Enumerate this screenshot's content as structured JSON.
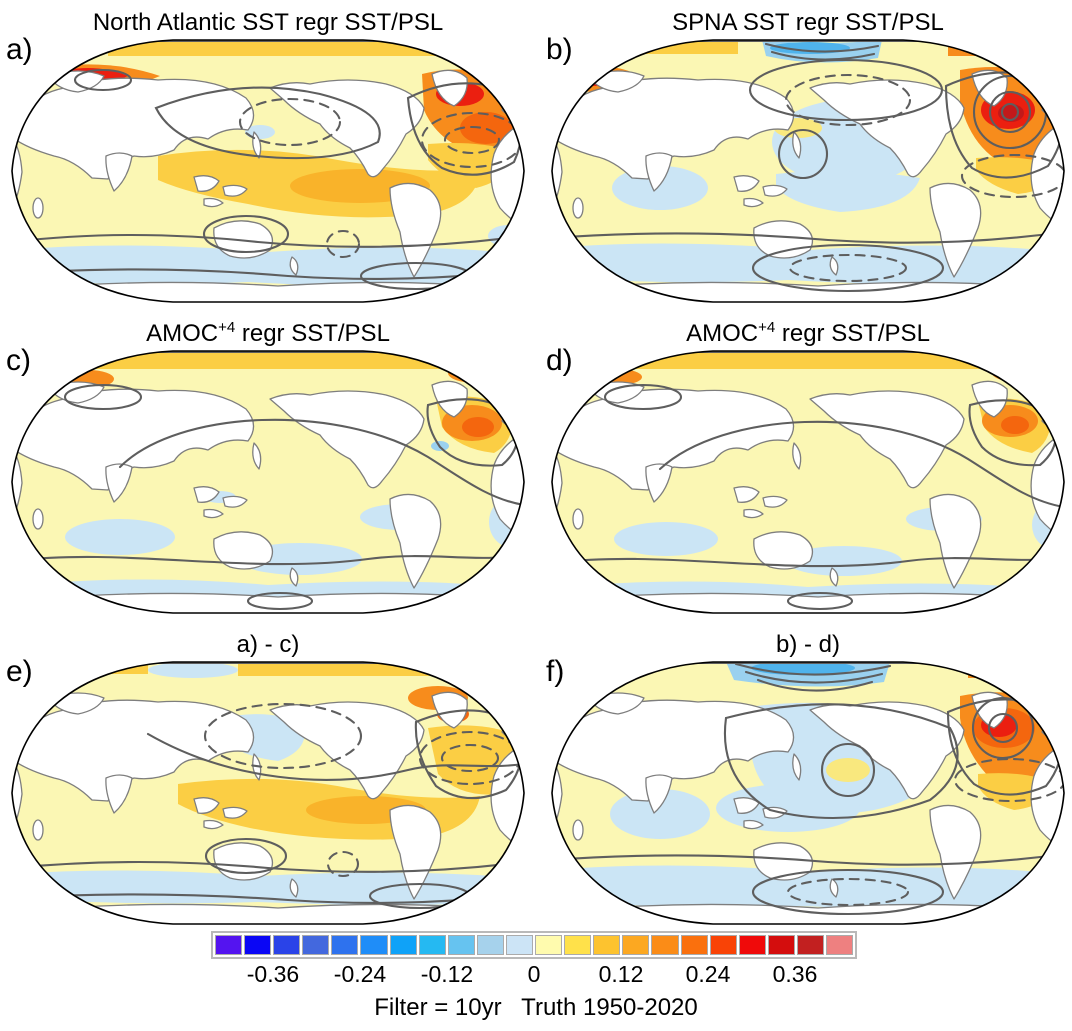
{
  "figure": {
    "caption": "Filter = 10yr   Truth 1950-2020"
  },
  "panels": [
    {
      "id": "a",
      "label": "a)",
      "title_prefix": "North Atlantic SST regr SST/PSL",
      "title_sup": "",
      "title_suffix": ""
    },
    {
      "id": "b",
      "label": "b)",
      "title_prefix": "SPNA SST regr SST/PSL",
      "title_sup": "",
      "title_suffix": ""
    },
    {
      "id": "c",
      "label": "c)",
      "title_prefix": "AMOC",
      "title_sup": "+4",
      "title_suffix": " regr SST/PSL"
    },
    {
      "id": "d",
      "label": "d)",
      "title_prefix": "AMOC",
      "title_sup": "+4",
      "title_suffix": " regr SST/PSL"
    },
    {
      "id": "e",
      "label": "e)",
      "title_prefix": "a) - c)",
      "title_sup": "",
      "title_suffix": ""
    },
    {
      "id": "f",
      "label": "f)",
      "title_prefix": "b) - d)",
      "title_sup": "",
      "title_suffix": ""
    }
  ],
  "colorbar": {
    "ticks": [
      "-0.36",
      "-0.24",
      "-0.12",
      "0",
      "0.12",
      "0.24",
      "0.36"
    ],
    "tick_values": [
      -0.36,
      -0.24,
      -0.12,
      0,
      0.12,
      0.24,
      0.36
    ],
    "cell_interval": 0.04,
    "range": [
      -0.44,
      0.44
    ],
    "colors": [
      "#5414F0",
      "#0A06F5",
      "#2A43E8",
      "#4368DE",
      "#2E72EE",
      "#1F8DF8",
      "#0FA2F8",
      "#25B9F2",
      "#66C3F0",
      "#A6D2EC",
      "#CCE4F6",
      "#FFFBAE",
      "#FFE14A",
      "#FDC32F",
      "#FCA821",
      "#FB8C17",
      "#FA700D",
      "#F94306",
      "#F00A0A",
      "#D40D0D",
      "#C22020",
      "#EE8080"
    ]
  },
  "chart_data": {
    "type": "heatmap",
    "variant": "six global regression maps, Robinson projection, Pacific-centered",
    "shading_variable": "SST regression (color shading)",
    "contour_variable": "PSL regression (gray contours, dashed = negative)",
    "colorbar": {
      "levels": [
        -0.44,
        -0.4,
        -0.36,
        -0.32,
        -0.28,
        -0.24,
        -0.2,
        -0.16,
        -0.12,
        -0.08,
        -0.04,
        0,
        0.04,
        0.08,
        0.12,
        0.16,
        0.2,
        0.24,
        0.28,
        0.32,
        0.36,
        0.4,
        0.44
      ],
      "tick_labels": [
        "-0.36",
        "-0.24",
        "-0.12",
        "0",
        "0.12",
        "0.24",
        "0.36"
      ],
      "colors": [
        "#5414F0",
        "#0A06F5",
        "#2A43E8",
        "#4368DE",
        "#2E72EE",
        "#1F8DF8",
        "#0FA2F8",
        "#25B9F2",
        "#66C3F0",
        "#A6D2EC",
        "#CCE4F6",
        "#FFFBAE",
        "#FFE14A",
        "#FDC32F",
        "#FCA821",
        "#FB8C17",
        "#FA700D",
        "#F94306",
        "#F00A0A",
        "#D40D0D",
        "#C22020",
        "#EE8080"
      ]
    },
    "panels": [
      {
        "id": "a",
        "title": "North Atlantic SST regr SST/PSL",
        "notable": "warm shading over most oceans, strong orange/red subpolar North Atlantic and Nordic Seas, warm tropical band, cool Southern Ocean band; dashed PSL lows over North Atlantic and North Pacific"
      },
      {
        "id": "b",
        "title": "SPNA SST regr SST/PSL",
        "notable": "intense warm bullseye with closed PSL contours south of Greenland, cool central North Pacific, cool streak near Bering Strait, dashed PSL low over Southern Ocean"
      },
      {
        "id": "c",
        "title": "AMOC+4 regr SST/PSL",
        "notable": "weak warm pattern overall, gold Arctic rim, modest orange spot southeast of Greenland, faint cool subtropical patches, few smooth PSL contours"
      },
      {
        "id": "d",
        "title": "AMOC+4 regr SST/PSL",
        "notable": "nearly identical weak warm pattern to panel c"
      },
      {
        "id": "e",
        "title": "a) - c)",
        "notable": "residual warm tropical band, warm North Atlantic with dashed PSL low, cool northwest Pacific patch, patchy cool Southern Ocean"
      },
      {
        "id": "f",
        "title": "b) - d)",
        "notable": "residual warm bullseye south of Greenland with closed contours, broad cool central North Pacific, cool Bering streak, dashed PSL low over Southern Ocean"
      }
    ],
    "caption": "Filter = 10yr   Truth 1950-2020"
  }
}
